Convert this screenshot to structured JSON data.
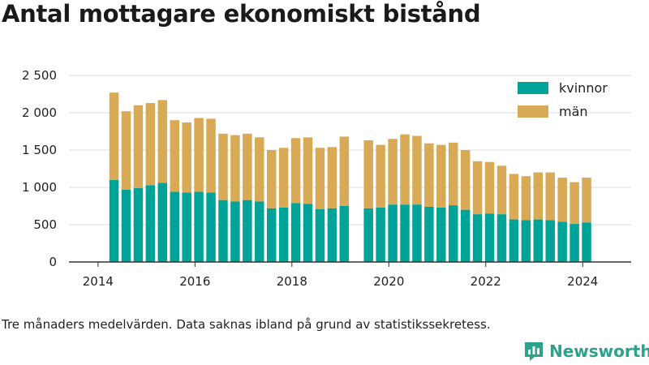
{
  "title": "Antal mottagare ekonomiskt bistånd",
  "footnote": "Tre månaders medelvärden. Data saknas ibland på grund av statistikssekretess.",
  "logo": {
    "name": "Newsworthy",
    "icon": "newsworthy-logo-icon"
  },
  "colors": {
    "kvinnor": "#00a398",
    "man": "#d9aa55",
    "grid": "#dddddd",
    "axis": "#333333"
  },
  "chart_data": {
    "type": "bar",
    "stacked": true,
    "grid": true,
    "legend_position": "top-right",
    "x_axis": {
      "min": 2013.4,
      "max": 2025.0,
      "ticks": [
        2014,
        2016,
        2018,
        2020,
        2022,
        2024
      ]
    },
    "y_axis": {
      "min": 0,
      "max": 2500,
      "ticks": [
        0,
        500,
        1000,
        1500,
        2000,
        2500
      ],
      "tick_labels": [
        "0",
        "500",
        "1 000",
        "1 500",
        "2 000",
        "2 500"
      ]
    },
    "x": [
      2014.33,
      2014.58,
      2014.83,
      2015.08,
      2015.33,
      2015.58,
      2015.83,
      2016.08,
      2016.33,
      2016.58,
      2016.83,
      2017.08,
      2017.33,
      2017.58,
      2017.83,
      2018.08,
      2018.33,
      2018.58,
      2018.83,
      2019.08,
      2019.58,
      2019.83,
      2020.08,
      2020.33,
      2020.58,
      2020.83,
      2021.08,
      2021.33,
      2021.58,
      2021.83,
      2022.08,
      2022.33,
      2022.58,
      2022.83,
      2023.08,
      2023.33,
      2023.58,
      2023.83,
      2024.08
    ],
    "series": [
      {
        "name": "kvinnor",
        "values": [
          1100,
          970,
          990,
          1030,
          1060,
          940,
          930,
          940,
          930,
          830,
          810,
          830,
          810,
          720,
          730,
          790,
          780,
          710,
          720,
          750,
          720,
          730,
          770,
          770,
          770,
          740,
          730,
          760,
          700,
          640,
          650,
          640,
          570,
          560,
          570,
          560,
          540,
          510,
          530
        ]
      },
      {
        "name": "män",
        "values": [
          1170,
          1050,
          1110,
          1100,
          1110,
          960,
          940,
          990,
          990,
          890,
          890,
          890,
          860,
          780,
          800,
          870,
          890,
          820,
          820,
          930,
          910,
          840,
          880,
          940,
          920,
          850,
          840,
          840,
          800,
          710,
          690,
          650,
          610,
          590,
          630,
          640,
          590,
          560,
          600
        ]
      }
    ]
  }
}
